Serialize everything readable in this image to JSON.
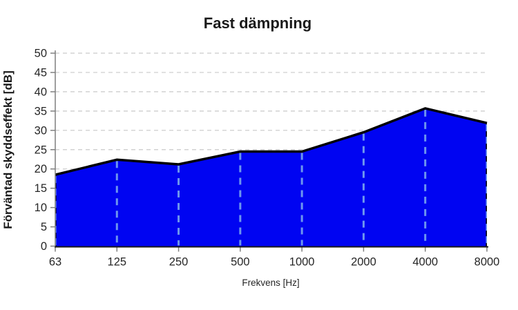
{
  "chart_data": {
    "type": "area",
    "title": "Fast dämpning",
    "xlabel": "Frekvens [Hz]",
    "ylabel": "Förväntad skyddseffekt [dB]",
    "categories": [
      "63",
      "125",
      "250",
      "500",
      "1000",
      "2000",
      "4000",
      "8000"
    ],
    "values": [
      18.5,
      22.4,
      21.2,
      24.5,
      24.5,
      29.5,
      35.7,
      31.9
    ],
    "yticks": [
      0,
      5,
      10,
      15,
      20,
      25,
      30,
      35,
      40,
      45,
      50
    ],
    "ylim": [
      0,
      50
    ],
    "legend": "none",
    "grid": {
      "horizontal": "dashed",
      "vertical_over_area": "dashed"
    },
    "colors": {
      "area_fill": "#0004f2",
      "line": "#000000",
      "h_grid": "#c9c9c9",
      "v_grid": "#6d96ee",
      "axis": "#7f7f7f",
      "baseline": "#1a1a1a",
      "text": "#262626"
    }
  }
}
